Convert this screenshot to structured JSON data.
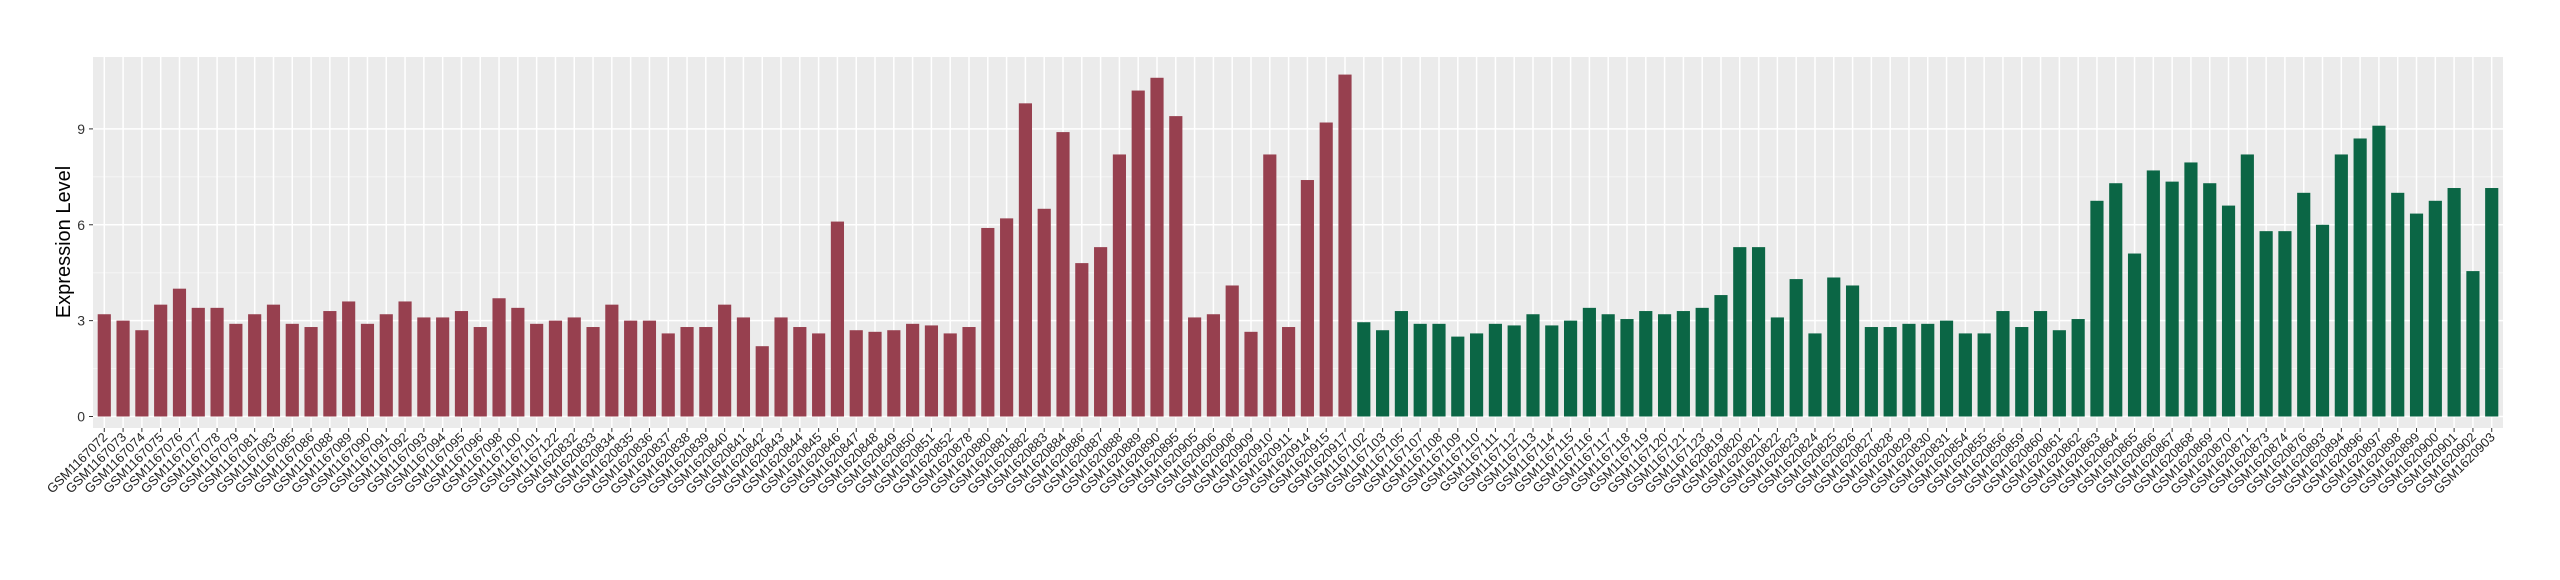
{
  "chart_data": {
    "type": "bar",
    "y_label": "Expression Level",
    "categories": [
      "GSM1167072",
      "GSM1167073",
      "GSM1167074",
      "GSM1167075",
      "GSM1167076",
      "GSM1167077",
      "GSM1167078",
      "GSM1167079",
      "GSM1167081",
      "GSM1167083",
      "GSM1167085",
      "GSM1167086",
      "GSM1167088",
      "GSM1167089",
      "GSM1167090",
      "GSM1167091",
      "GSM1167092",
      "GSM1167093",
      "GSM1167094",
      "GSM1167095",
      "GSM1167096",
      "GSM1167098",
      "GSM1167100",
      "GSM1167101",
      "GSM1167122",
      "GSM1620832",
      "GSM1620833",
      "GSM1620834",
      "GSM1620835",
      "GSM1620836",
      "GSM1620837",
      "GSM1620838",
      "GSM1620839",
      "GSM1620840",
      "GSM1620841",
      "GSM1620842",
      "GSM1620843",
      "GSM1620844",
      "GSM1620845",
      "GSM1620846",
      "GSM1620847",
      "GSM1620848",
      "GSM1620849",
      "GSM1620850",
      "GSM1620851",
      "GSM1620852",
      "GSM1620878",
      "GSM1620880",
      "GSM1620881",
      "GSM1620882",
      "GSM1620883",
      "GSM1620884",
      "GSM1620886",
      "GSM1620887",
      "GSM1620888",
      "GSM1620889",
      "GSM1620890",
      "GSM1620895",
      "GSM1620905",
      "GSM1620906",
      "GSM1620908",
      "GSM1620909",
      "GSM1620910",
      "GSM1620911",
      "GSM1620914",
      "GSM1620915",
      "GSM1620917",
      "GSM1167102",
      "GSM1167103",
      "GSM1167105",
      "GSM1167107",
      "GSM1167108",
      "GSM1167109",
      "GSM1167110",
      "GSM1167111",
      "GSM1167112",
      "GSM1167113",
      "GSM1167114",
      "GSM1167115",
      "GSM1167116",
      "GSM1167117",
      "GSM1167118",
      "GSM1167119",
      "GSM1167120",
      "GSM1167121",
      "GSM1167123",
      "GSM1620819",
      "GSM1620820",
      "GSM1620821",
      "GSM1620822",
      "GSM1620823",
      "GSM1620824",
      "GSM1620825",
      "GSM1620826",
      "GSM1620827",
      "GSM1620828",
      "GSM1620829",
      "GSM1620830",
      "GSM1620831",
      "GSM1620854",
      "GSM1620855",
      "GSM1620856",
      "GSM1620859",
      "GSM1620860",
      "GSM1620861",
      "GSM1620862",
      "GSM1620863",
      "GSM1620864",
      "GSM1620865",
      "GSM1620866",
      "GSM1620867",
      "GSM1620868",
      "GSM1620869",
      "GSM1620870",
      "GSM1620871",
      "GSM1620873",
      "GSM1620874",
      "GSM1620876",
      "GSM1620893",
      "GSM1620894",
      "GSM1620896",
      "GSM1620897",
      "GSM1620898",
      "GSM1620899",
      "GSM1620900",
      "GSM1620901",
      "GSM1620902",
      "GSM1620903"
    ],
    "values": [
      3.2,
      3.0,
      2.7,
      3.5,
      4.0,
      3.4,
      3.4,
      2.9,
      3.2,
      3.5,
      2.9,
      2.8,
      3.3,
      3.6,
      2.9,
      3.2,
      3.6,
      3.1,
      3.1,
      3.3,
      2.8,
      3.7,
      3.4,
      2.9,
      3.0,
      3.1,
      2.8,
      3.5,
      3.0,
      3.0,
      2.6,
      2.8,
      2.8,
      3.5,
      3.1,
      2.2,
      3.1,
      2.8,
      2.6,
      6.1,
      2.7,
      2.65,
      2.7,
      2.9,
      2.85,
      2.6,
      2.8,
      5.9,
      6.2,
      9.8,
      6.5,
      8.9,
      4.8,
      5.3,
      8.2,
      10.2,
      10.6,
      9.4,
      3.1,
      3.2,
      4.1,
      2.65,
      8.2,
      2.8,
      7.4,
      9.2,
      10.7,
      2.95,
      2.7,
      3.3,
      2.9,
      2.9,
      2.5,
      2.6,
      2.9,
      2.85,
      3.2,
      2.85,
      3.0,
      3.4,
      3.2,
      3.05,
      3.3,
      3.2,
      3.3,
      3.4,
      3.8,
      5.3,
      5.3,
      3.1,
      4.3,
      2.6,
      4.35,
      4.1,
      2.8,
      2.8,
      2.9,
      2.9,
      3.0,
      2.6,
      2.6,
      3.3,
      2.8,
      3.3,
      2.7,
      3.05,
      6.75,
      7.3,
      5.1,
      7.7,
      7.35,
      7.95,
      7.3,
      6.6,
      8.2,
      5.8,
      5.8,
      7.0,
      6.0,
      8.2,
      8.7,
      9.1,
      7.0,
      6.35,
      6.75,
      7.15,
      4.55,
      7.15
    ],
    "colors": [
      "#97404f",
      "#97404f",
      "#97404f",
      "#97404f",
      "#97404f",
      "#97404f",
      "#97404f",
      "#97404f",
      "#97404f",
      "#97404f",
      "#97404f",
      "#97404f",
      "#97404f",
      "#97404f",
      "#97404f",
      "#97404f",
      "#97404f",
      "#97404f",
      "#97404f",
      "#97404f",
      "#97404f",
      "#97404f",
      "#97404f",
      "#97404f",
      "#97404f",
      "#97404f",
      "#97404f",
      "#97404f",
      "#97404f",
      "#97404f",
      "#97404f",
      "#97404f",
      "#97404f",
      "#97404f",
      "#97404f",
      "#97404f",
      "#97404f",
      "#97404f",
      "#97404f",
      "#97404f",
      "#97404f",
      "#97404f",
      "#97404f",
      "#97404f",
      "#97404f",
      "#97404f",
      "#97404f",
      "#97404f",
      "#97404f",
      "#97404f",
      "#97404f",
      "#97404f",
      "#97404f",
      "#97404f",
      "#97404f",
      "#97404f",
      "#97404f",
      "#97404f",
      "#97404f",
      "#97404f",
      "#97404f",
      "#97404f",
      "#97404f",
      "#97404f",
      "#97404f",
      "#97404f",
      "#97404f",
      "#0b6645",
      "#0b6645",
      "#0b6645",
      "#0b6645",
      "#0b6645",
      "#0b6645",
      "#0b6645",
      "#0b6645",
      "#0b6645",
      "#0b6645",
      "#0b6645",
      "#0b6645",
      "#0b6645",
      "#0b6645",
      "#0b6645",
      "#0b6645",
      "#0b6645",
      "#0b6645",
      "#0b6645",
      "#0b6645",
      "#0b6645",
      "#0b6645",
      "#0b6645",
      "#0b6645",
      "#0b6645",
      "#0b6645",
      "#0b6645",
      "#0b6645",
      "#0b6645",
      "#0b6645",
      "#0b6645",
      "#0b6645",
      "#0b6645",
      "#0b6645",
      "#0b6645",
      "#0b6645",
      "#0b6645",
      "#0b6645",
      "#0b6645",
      "#0b6645",
      "#0b6645",
      "#0b6645",
      "#0b6645",
      "#0b6645",
      "#0b6645",
      "#0b6645",
      "#0b6645",
      "#0b6645",
      "#0b6645",
      "#0b6645",
      "#0b6645",
      "#0b6645",
      "#0b6645",
      "#0b6645",
      "#0b6645",
      "#0b6645",
      "#0b6645",
      "#0b6645",
      "#0b6645",
      "#0b6645",
      "#0b6645"
    ],
    "ylim": [
      -0.36,
      11.25
    ],
    "yticks": [
      0,
      3,
      6,
      9
    ],
    "grid": true
  }
}
